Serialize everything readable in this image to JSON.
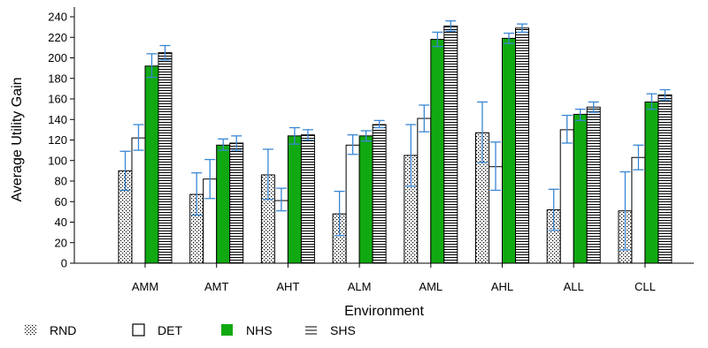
{
  "chart_data": {
    "type": "bar",
    "title": "",
    "xlabel": "Environment",
    "ylabel": "Average Utility Gain",
    "ylim": [
      0,
      240
    ],
    "yticks": [
      0,
      20,
      40,
      60,
      80,
      100,
      120,
      140,
      160,
      180,
      200,
      220,
      240
    ],
    "categories": [
      "AMM",
      "AMT",
      "AHT",
      "ALM",
      "AML",
      "AHL",
      "ALL",
      "CLL"
    ],
    "legend_position": "bottom",
    "grid": false,
    "error_bar_color": "#3a87d4",
    "series": [
      {
        "name": "RND",
        "pattern": "dots",
        "values": [
          90,
          67,
          86,
          48,
          105,
          127,
          52,
          51
        ],
        "err_low": [
          71,
          47,
          62,
          27,
          75,
          98,
          32,
          13
        ],
        "err_high": [
          109,
          88,
          111,
          70,
          135,
          157,
          72,
          89
        ]
      },
      {
        "name": "DET",
        "pattern": "empty",
        "values": [
          122,
          82,
          61,
          115,
          141,
          94,
          130,
          103
        ],
        "err_low": [
          110,
          63,
          51,
          106,
          128,
          71,
          117,
          91
        ],
        "err_high": [
          135,
          101,
          73,
          125,
          154,
          118,
          144,
          115
        ]
      },
      {
        "name": "NHS",
        "pattern": "solid",
        "color": "#11a911",
        "values": [
          192,
          115,
          124,
          124,
          218,
          219,
          145,
          157
        ],
        "err_low": [
          181,
          110,
          116,
          119,
          211,
          214,
          139,
          150
        ],
        "err_high": [
          204,
          121,
          132,
          129,
          225,
          224,
          150,
          165
        ]
      },
      {
        "name": "SHS",
        "pattern": "horizontal-lines",
        "values": [
          205,
          117,
          125,
          135,
          231,
          229,
          152,
          164
        ],
        "err_low": [
          198,
          110,
          120,
          132,
          226,
          225,
          147,
          159
        ],
        "err_high": [
          212,
          124,
          130,
          139,
          236,
          233,
          157,
          169
        ]
      }
    ]
  }
}
